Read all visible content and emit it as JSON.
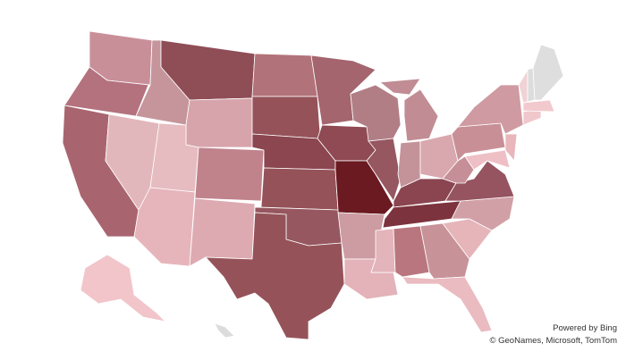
{
  "attribution": {
    "powered_by": "Powered by Bing",
    "copyright": "© GeoNames, Microsoft, TomTom"
  }
}
